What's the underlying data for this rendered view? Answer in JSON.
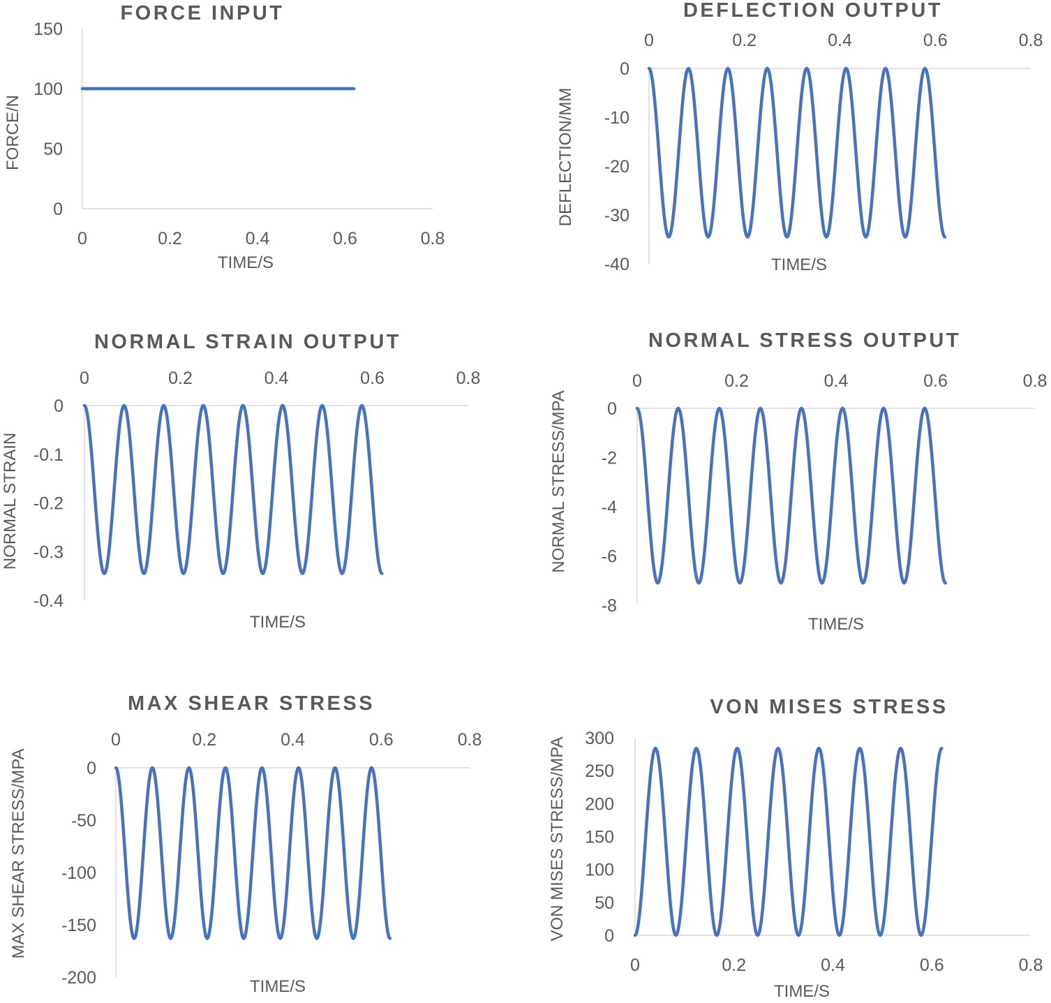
{
  "colors": {
    "series": "#4472C4",
    "axis": "#D9D9D9",
    "text": "#595959"
  },
  "chart_data": [
    {
      "type": "line",
      "title": "FORCE INPUT",
      "xlabel": "TIME/S",
      "ylabel": "FORCE/N",
      "xlim": [
        0,
        0.8
      ],
      "ylim": [
        0,
        150
      ],
      "x_ticks": [
        "0",
        "0.2",
        "0.4",
        "0.6",
        "0.8"
      ],
      "y_ticks": [
        "150",
        "100",
        "50",
        "0"
      ],
      "x_axis_position": "bottom",
      "grid": false,
      "series": [
        {
          "x": [
            0,
            0.62
          ],
          "y": [
            100,
            100
          ]
        }
      ]
    },
    {
      "type": "line",
      "title": "DEFLECTION OUTPUT",
      "xlabel": "TIME/S",
      "ylabel": "DEFLECTION/MM",
      "xlim": [
        0,
        0.8
      ],
      "ylim": [
        -40,
        0
      ],
      "x_ticks": [
        "0",
        "0.2",
        "0.4",
        "0.6",
        "0.8"
      ],
      "y_ticks": [
        "0",
        "-10",
        "-20",
        "-30",
        "-40"
      ],
      "x_axis_position": "top",
      "grid": false,
      "series": [
        {
          "x": [
            0,
            0.0413,
            0.0826,
            0.1239,
            0.1652,
            0.2065,
            0.2478,
            0.2891,
            0.3304,
            0.3717,
            0.413,
            0.4543,
            0.4956,
            0.5369,
            0.5782,
            0.62
          ],
          "y": [
            0,
            -34.5,
            0,
            -34.5,
            0,
            -34.5,
            0,
            -34.5,
            0,
            -34.5,
            0,
            -34.5,
            0,
            -34.5,
            0,
            -34.5
          ]
        }
      ]
    },
    {
      "type": "line",
      "title": "NORMAL STRAIN OUTPUT",
      "xlabel": "TIME/S",
      "ylabel": "NORMAL STRAIN",
      "xlim": [
        0,
        0.8
      ],
      "ylim": [
        -0.4,
        0
      ],
      "x_ticks": [
        "0",
        "0.2",
        "0.4",
        "0.6",
        "0.8"
      ],
      "y_ticks": [
        "0",
        "-0.1",
        "-0.2",
        "-0.3",
        "-0.4"
      ],
      "x_axis_position": "top",
      "grid": false,
      "series": [
        {
          "x": [
            0,
            0.0413,
            0.0826,
            0.1239,
            0.1652,
            0.2065,
            0.2478,
            0.2891,
            0.3304,
            0.3717,
            0.413,
            0.4543,
            0.4956,
            0.5369,
            0.5782,
            0.62
          ],
          "y": [
            0,
            -0.345,
            0,
            -0.345,
            0,
            -0.345,
            0,
            -0.345,
            0,
            -0.345,
            0,
            -0.345,
            0,
            -0.345,
            0,
            -0.345
          ]
        }
      ]
    },
    {
      "type": "line",
      "title": "NORMAL STRESS OUTPUT",
      "xlabel": "TIME/S",
      "ylabel": "NORMAL STRESS/MPA",
      "xlim": [
        0,
        0.8
      ],
      "ylim": [
        -8,
        0
      ],
      "x_ticks": [
        "0",
        "0.2",
        "0.4",
        "0.6",
        "0.8"
      ],
      "y_ticks": [
        "0",
        "-2",
        "-4",
        "-6",
        "-8"
      ],
      "x_axis_position": "top",
      "grid": false,
      "series": [
        {
          "x": [
            0,
            0.0413,
            0.0826,
            0.1239,
            0.1652,
            0.2065,
            0.2478,
            0.2891,
            0.3304,
            0.3717,
            0.413,
            0.4543,
            0.4956,
            0.5369,
            0.5782,
            0.62
          ],
          "y": [
            0,
            -7.1,
            0,
            -7.1,
            0,
            -7.1,
            0,
            -7.1,
            0,
            -7.1,
            0,
            -7.1,
            0,
            -7.1,
            0,
            -7.1
          ]
        }
      ]
    },
    {
      "type": "line",
      "title": "MAX SHEAR STRESS",
      "xlabel": "TIME/S",
      "ylabel": "MAX SHEAR STRESS/MPA",
      "xlim": [
        0,
        0.8
      ],
      "ylim": [
        -200,
        0
      ],
      "x_ticks": [
        "0",
        "0.2",
        "0.4",
        "0.6",
        "0.8"
      ],
      "y_ticks": [
        "0",
        "-50",
        "-100",
        "-150",
        "-200"
      ],
      "x_axis_position": "top",
      "grid": false,
      "series": [
        {
          "x": [
            0,
            0.0413,
            0.0826,
            0.1239,
            0.1652,
            0.2065,
            0.2478,
            0.2891,
            0.3304,
            0.3717,
            0.413,
            0.4543,
            0.4956,
            0.5369,
            0.5782,
            0.62
          ],
          "y": [
            0,
            -163,
            0,
            -163,
            0,
            -163,
            0,
            -163,
            0,
            -163,
            0,
            -163,
            0,
            -163,
            0,
            -163
          ]
        }
      ]
    },
    {
      "type": "line",
      "title": "VON MISES STRESS",
      "xlabel": "TIME/S",
      "ylabel": "VON MISES STRESS/MPA",
      "xlim": [
        0,
        0.8
      ],
      "ylim": [
        0,
        300
      ],
      "x_ticks": [
        "0",
        "0.2",
        "0.4",
        "0.6",
        "0.8"
      ],
      "y_ticks": [
        "300",
        "250",
        "200",
        "150",
        "100",
        "50",
        "0"
      ],
      "x_axis_position": "bottom",
      "grid": false,
      "series": [
        {
          "x": [
            0,
            0.0413,
            0.0826,
            0.1239,
            0.1652,
            0.2065,
            0.2478,
            0.2891,
            0.3304,
            0.3717,
            0.413,
            0.4543,
            0.4956,
            0.5369,
            0.5782,
            0.62
          ],
          "y": [
            0,
            284,
            0,
            284,
            0,
            284,
            0,
            284,
            0,
            284,
            0,
            284,
            0,
            284,
            0,
            284
          ]
        }
      ]
    }
  ]
}
